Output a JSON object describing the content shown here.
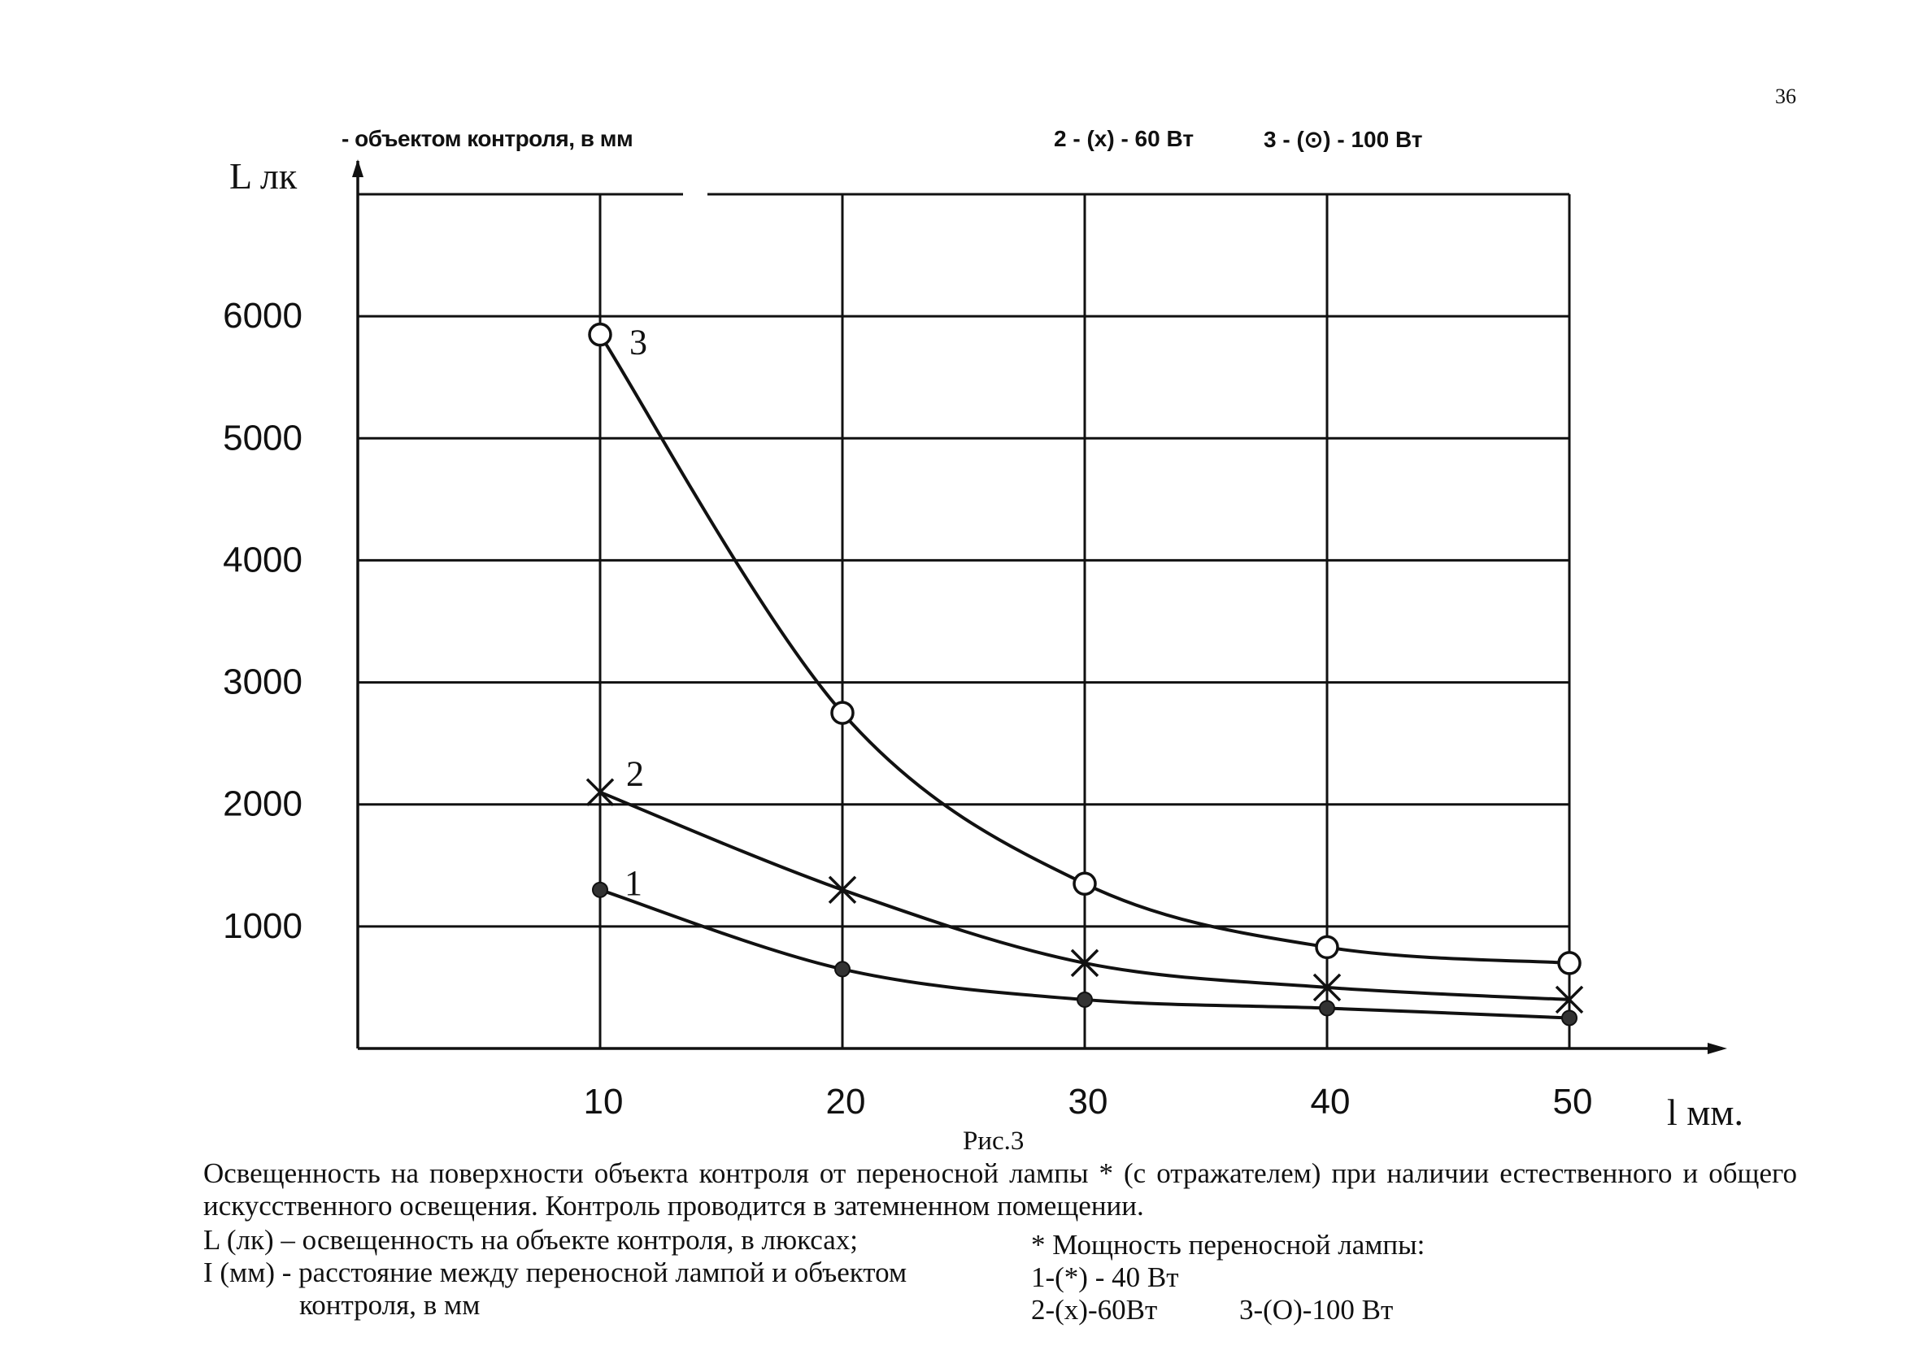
{
  "page_number": "36",
  "top_fragment": "- объектом контроля, в мм",
  "top_legend": {
    "item2": "2 - (x) - 60 Вт",
    "item3": "3 - (⊙) - 100 Вт"
  },
  "chart_data": {
    "type": "line",
    "xlabel": "l мм.",
    "ylabel": "L лк",
    "x": [
      10,
      20,
      30,
      40,
      50
    ],
    "xlim": [
      0,
      50
    ],
    "ylim": [
      0,
      7000
    ],
    "y_ticks": [
      1000,
      2000,
      3000,
      4000,
      5000,
      6000
    ],
    "x_ticks": [
      10,
      20,
      30,
      40,
      50
    ],
    "grid": true,
    "series": [
      {
        "name": "1",
        "marker": "filled-dot",
        "values": [
          1300,
          650,
          400,
          330,
          250
        ]
      },
      {
        "name": "2",
        "marker": "x",
        "values": [
          2100,
          1300,
          700,
          500,
          400
        ]
      },
      {
        "name": "3",
        "marker": "open-circle",
        "values": [
          5850,
          2750,
          1350,
          830,
          700
        ]
      }
    ]
  },
  "caption": {
    "figure_label": "Рис.3",
    "text": "Освещенность на поверхности объекта контроля от переносной лампы * (с отражателем) при наличии естественного и общего искусственного освещения. Контроль проводится в затемненном помещении."
  },
  "footnotes": {
    "L_definition": "L (лк) – освещенность на объекте контроля, в люксах;",
    "I_definition_line1": "I (мм) - расстояние между переносной лампой и объектом",
    "I_definition_line2": "контроля, в мм",
    "power_title": "* Мощность переносной лампы:",
    "power_1": "1-(*) - 40 Вт",
    "power_2": "2-(x)-60Вт",
    "power_3": "3-(O)-100 Вт"
  }
}
